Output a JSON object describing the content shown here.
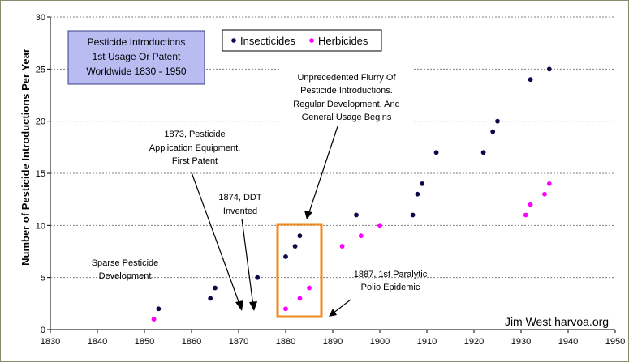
{
  "chart_data": {
    "type": "scatter",
    "title_lines": [
      "Pesticide Introductions",
      "1st Usage Or Patent",
      "Worldwide 1830 - 1950"
    ],
    "ylabel": "Number of Pesticide Introductions Per Year",
    "xlim": [
      1830,
      1950
    ],
    "ylim": [
      0,
      30
    ],
    "xticks": [
      1830,
      1840,
      1850,
      1860,
      1870,
      1880,
      1890,
      1900,
      1910,
      1920,
      1930,
      1940,
      1950
    ],
    "yticks": [
      0,
      5,
      10,
      15,
      20,
      25,
      30
    ],
    "grid": "horizontal dashed",
    "legend_position": "top",
    "series": [
      {
        "name": "Insecticides",
        "color": "#0a0a4a",
        "points": [
          [
            1853,
            2
          ],
          [
            1864,
            3
          ],
          [
            1865,
            4
          ],
          [
            1874,
            5
          ],
          [
            1880,
            7
          ],
          [
            1882,
            8
          ],
          [
            1883,
            9
          ],
          [
            1895,
            11
          ],
          [
            1907,
            11
          ],
          [
            1908,
            13
          ],
          [
            1909,
            14
          ],
          [
            1912,
            17
          ],
          [
            1922,
            17
          ],
          [
            1924,
            19
          ],
          [
            1925,
            20
          ],
          [
            1932,
            24
          ],
          [
            1936,
            25
          ]
        ]
      },
      {
        "name": "Herbicides",
        "color": "#ff00ff",
        "points": [
          [
            1852,
            1
          ],
          [
            1880,
            2
          ],
          [
            1883,
            3
          ],
          [
            1885,
            4
          ],
          [
            1892,
            8
          ],
          [
            1896,
            9
          ],
          [
            1900,
            10
          ],
          [
            1931,
            11
          ],
          [
            1932,
            12
          ],
          [
            1935,
            13
          ],
          [
            1936,
            14
          ]
        ]
      }
    ],
    "annotations": [
      {
        "id": "sparse",
        "lines": [
          "Sparse Pesticide",
          "Development"
        ]
      },
      {
        "id": "equip",
        "lines": [
          "1873, Pesticide",
          "Application Equipment,",
          "First Patent"
        ]
      },
      {
        "id": "ddt",
        "lines": [
          "1874, DDT",
          "Invented"
        ]
      },
      {
        "id": "flurry",
        "lines": [
          "Unprecedented Flurry Of",
          "Pesticide Introductions.",
          "Regular Development, And",
          "General Usage Begins"
        ]
      },
      {
        "id": "polio",
        "lines": [
          "1887, 1st Paralytic",
          "Polio Epidemic"
        ]
      }
    ],
    "credit": "Jim West harvoa.org"
  },
  "colors": {
    "plot_background": "#ffffff",
    "title_box_fill": "#b8bcf0",
    "highlight_box": "#f08a1e",
    "frame_border": "#8a8a6a"
  }
}
